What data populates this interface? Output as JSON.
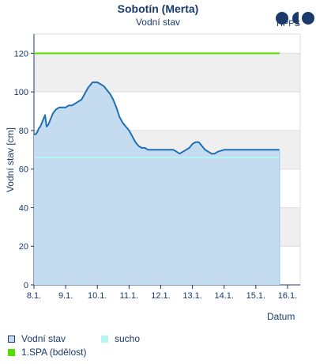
{
  "chart_data": {
    "type": "line",
    "title": "Sobotín (Merta)",
    "subtitle": "Vodní stav",
    "xlabel": "Datum",
    "ylabel": "Vodní stav [cm]",
    "ylim": [
      0,
      130
    ],
    "yticks": [
      0,
      20,
      40,
      60,
      80,
      100,
      120
    ],
    "xlim": [
      0,
      8.4
    ],
    "xticks": [
      "8.1.",
      "9.1.",
      "10.1.",
      "11.1.",
      "12.1.",
      "13.1.",
      "14.1.",
      "15.1.",
      "16.1."
    ],
    "grid": true,
    "series": [
      {
        "name": "Vodní stav",
        "color": "#1f6fb5",
        "fill": "#c5dbf0",
        "x": [
          0.0,
          0.05,
          0.1,
          0.15,
          0.2,
          0.25,
          0.3,
          0.35,
          0.4,
          0.45,
          0.5,
          0.55,
          0.6,
          0.65,
          0.7,
          0.8,
          0.9,
          1.0,
          1.1,
          1.2,
          1.3,
          1.4,
          1.5,
          1.6,
          1.7,
          1.8,
          1.85,
          1.9,
          1.95,
          2.0,
          2.1,
          2.2,
          2.3,
          2.4,
          2.5,
          2.6,
          2.7,
          2.8,
          2.9,
          3.0,
          3.1,
          3.2,
          3.3,
          3.4,
          3.5,
          3.6,
          3.7,
          3.8,
          4.0,
          4.2,
          4.4,
          4.6,
          4.7,
          4.8,
          4.9,
          5.0,
          5.1,
          5.2,
          5.3,
          5.4,
          5.5,
          5.6,
          5.7,
          5.8,
          6.0,
          6.2,
          6.4,
          6.6,
          6.8,
          7.0,
          7.2,
          7.4,
          7.6,
          7.75
        ],
        "y": [
          78,
          78,
          79,
          81,
          82,
          84,
          86,
          88,
          82,
          83,
          85,
          87,
          89,
          90,
          91,
          92,
          92,
          92,
          93,
          93,
          94,
          95,
          96,
          99,
          102,
          104,
          105,
          105,
          105,
          105,
          104,
          103,
          101,
          99,
          96,
          92,
          87,
          84,
          82,
          80,
          77,
          74,
          72,
          71,
          71,
          70,
          70,
          70,
          70,
          70,
          70,
          68,
          69,
          70,
          71,
          73,
          74,
          74,
          72,
          70,
          69,
          68,
          68,
          69,
          70,
          70,
          70,
          70,
          70,
          70,
          70,
          70,
          70,
          70
        ]
      },
      {
        "name": "sucho",
        "color": "#b3f5f2",
        "x": [
          0,
          7.75
        ],
        "y": [
          66,
          66
        ]
      },
      {
        "name": "1.SPA (bdělost)",
        "color": "#55dd00",
        "x": [
          0,
          7.75
        ],
        "y": [
          120,
          120
        ]
      }
    ]
  },
  "logo": {
    "text": "HPPS"
  },
  "legend": [
    {
      "label": "Vodní stav",
      "swatch": "#c5dbf0",
      "border": "#1a3a6b"
    },
    {
      "label": "sucho",
      "swatch": "#b3f5f2",
      "border": "#b3f5f2"
    },
    {
      "label": "1.SPA (bdělost)",
      "swatch": "#55dd00",
      "border": "#55dd00"
    }
  ]
}
